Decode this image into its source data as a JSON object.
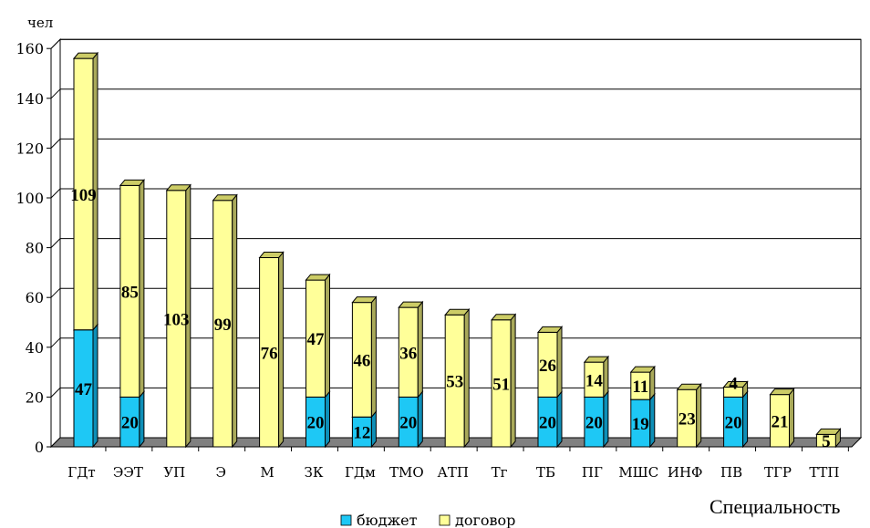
{
  "chart_data": {
    "type": "bar",
    "stacked": true,
    "three_d": true,
    "ylabel": "чел",
    "xlabel": "Специальность",
    "ylim": [
      0,
      160
    ],
    "yticks": [
      0,
      20,
      40,
      60,
      80,
      100,
      120,
      140,
      160
    ],
    "grid": true,
    "legend_position": "bottom",
    "categories": [
      "ГДт",
      "ЭЭТ",
      "УП",
      "Э",
      "М",
      "ЗК",
      "ГДм",
      "ТМО",
      "АТП",
      "Тг",
      "ТБ",
      "ПГ",
      "МШС",
      "ИНФ",
      "ПВ",
      "ТГР",
      "ТТП"
    ],
    "series": [
      {
        "name": "бюджет",
        "color": "#1ec8f5",
        "values": [
          47,
          20,
          0,
          0,
          0,
          20,
          12,
          20,
          0,
          0,
          20,
          20,
          19,
          0,
          20,
          0,
          0
        ]
      },
      {
        "name": "договор",
        "color": "#ffff99",
        "values": [
          109,
          85,
          103,
          99,
          76,
          47,
          46,
          36,
          53,
          51,
          26,
          14,
          11,
          23,
          4,
          21,
          5
        ]
      }
    ]
  }
}
